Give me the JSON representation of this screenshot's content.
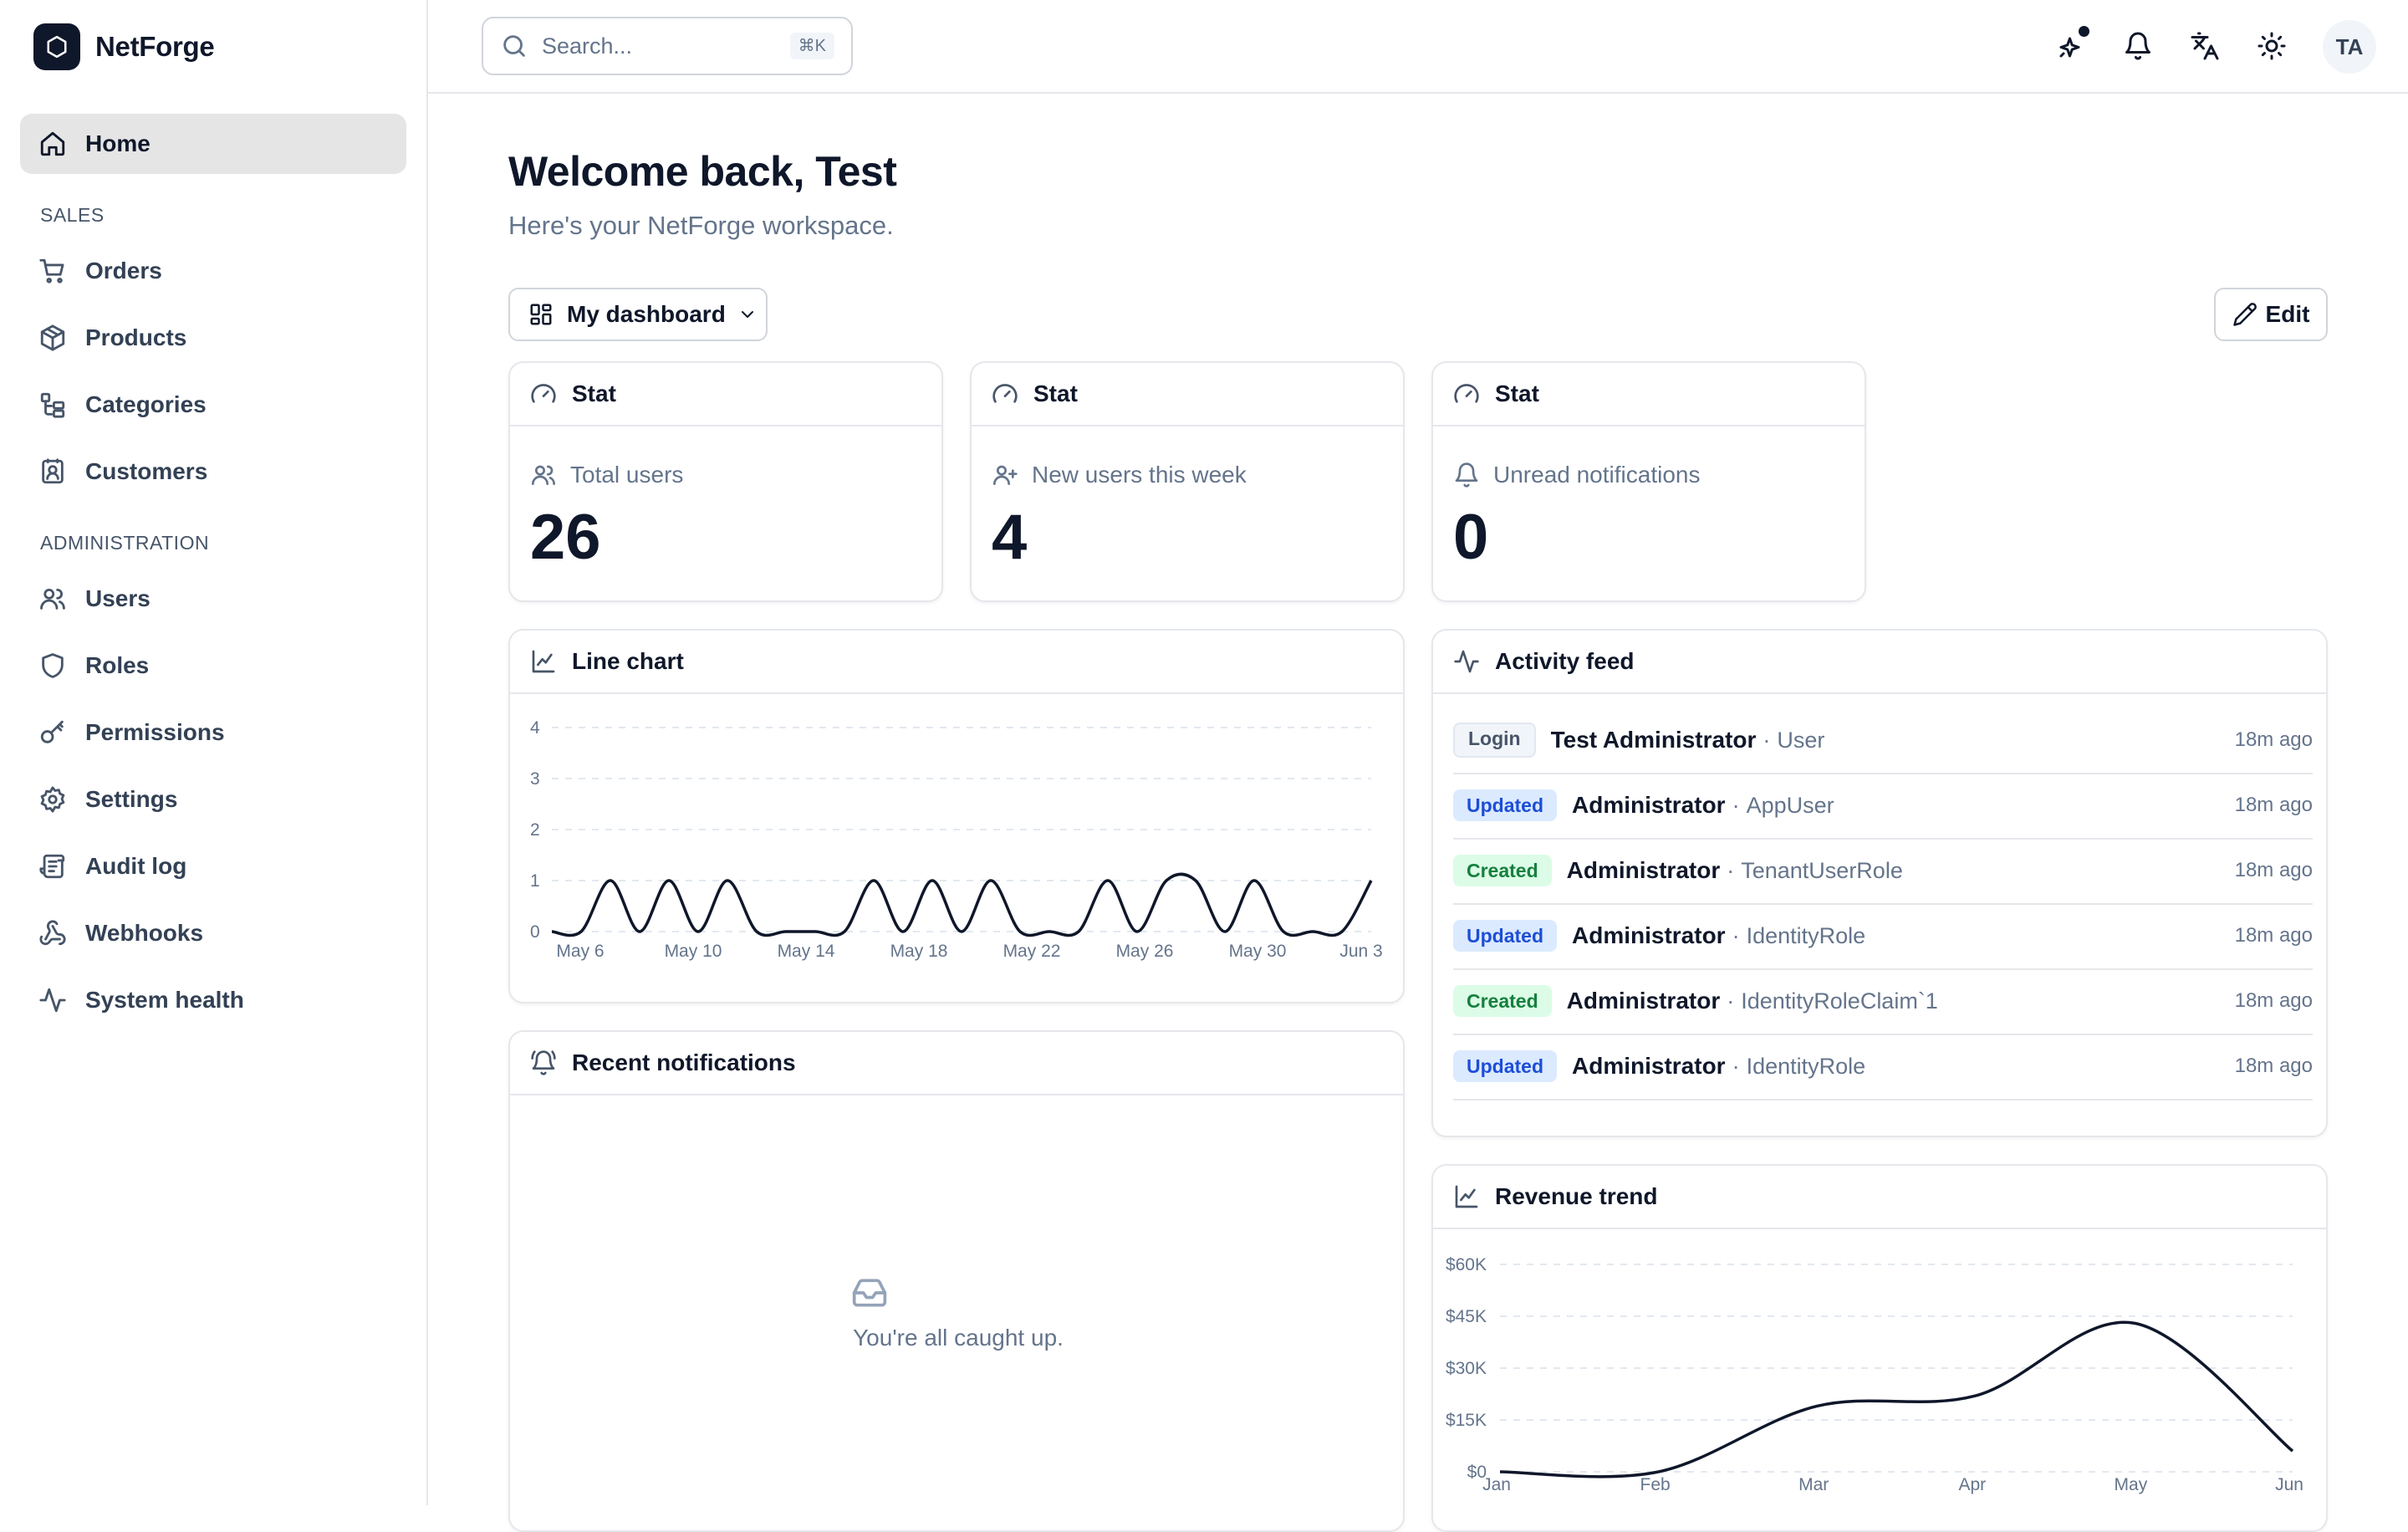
{
  "app": {
    "name": "NetForge"
  },
  "sidebar": {
    "home": {
      "label": "Home"
    },
    "sections": [
      {
        "title": "SALES",
        "items": [
          {
            "label": "Orders",
            "icon": "cart-icon"
          },
          {
            "label": "Products",
            "icon": "box-icon"
          },
          {
            "label": "Categories",
            "icon": "categories-icon"
          },
          {
            "label": "Customers",
            "icon": "contact-icon"
          }
        ]
      },
      {
        "title": "ADMINISTRATION",
        "items": [
          {
            "label": "Users",
            "icon": "users-icon"
          },
          {
            "label": "Roles",
            "icon": "shield-icon"
          },
          {
            "label": "Permissions",
            "icon": "key-icon"
          },
          {
            "label": "Settings",
            "icon": "gear-icon"
          },
          {
            "label": "Audit log",
            "icon": "scroll-icon"
          },
          {
            "label": "Webhooks",
            "icon": "webhook-icon"
          },
          {
            "label": "System health",
            "icon": "activity-icon"
          }
        ]
      }
    ]
  },
  "header": {
    "search": {
      "placeholder": "Search...",
      "shortcut": "⌘K"
    },
    "avatar_initials": "TA"
  },
  "main": {
    "title": "Welcome back, Test",
    "subtitle": "Here's your NetForge workspace.",
    "dashboard_select": {
      "label": "My dashboard"
    },
    "edit_label": "Edit",
    "stats": [
      {
        "card_title": "Stat",
        "label": "Total users",
        "value": "26"
      },
      {
        "card_title": "Stat",
        "label": "New users this week",
        "value": "4"
      },
      {
        "card_title": "Stat",
        "label": "Unread notifications",
        "value": "0"
      }
    ],
    "line_chart": {
      "title": "Line chart"
    },
    "activity_feed": {
      "title": "Activity feed",
      "items": [
        {
          "badge": "Login",
          "kind": "login",
          "actor": "Test Administrator",
          "entity": "User",
          "time": "18m ago"
        },
        {
          "badge": "Updated",
          "kind": "updated",
          "actor": "Administrator",
          "entity": "AppUser",
          "time": "18m ago"
        },
        {
          "badge": "Created",
          "kind": "created",
          "actor": "Administrator",
          "entity": "TenantUserRole",
          "time": "18m ago"
        },
        {
          "badge": "Updated",
          "kind": "updated",
          "actor": "Administrator",
          "entity": "IdentityRole",
          "time": "18m ago"
        },
        {
          "badge": "Created",
          "kind": "created",
          "actor": "Administrator",
          "entity": "IdentityRoleClaim`1",
          "time": "18m ago"
        },
        {
          "badge": "Updated",
          "kind": "updated",
          "actor": "Administrator",
          "entity": "IdentityRole",
          "time": "18m ago"
        }
      ]
    },
    "notifications": {
      "title": "Recent notifications",
      "empty_text": "You're all caught up."
    },
    "revenue": {
      "title": "Revenue trend"
    }
  },
  "chart_data": [
    {
      "type": "line",
      "x_tick_labels": [
        "May 6",
        "May 10",
        "May 14",
        "May 18",
        "May 22",
        "May 26",
        "May 30",
        "Jun 3"
      ],
      "y_tick_labels": [
        "0",
        "1",
        "2",
        "3",
        "4"
      ],
      "ylim": [
        0,
        4
      ],
      "grid": true,
      "series": [
        {
          "values": [
            0,
            0,
            1,
            0,
            1,
            0,
            1,
            0,
            0,
            0,
            0,
            1,
            0,
            1,
            0,
            1,
            0,
            0,
            0,
            1,
            0,
            1,
            1,
            0,
            1,
            0,
            0,
            0,
            1
          ]
        }
      ]
    },
    {
      "type": "line",
      "categories": [
        "Jan",
        "Feb",
        "Mar",
        "Apr",
        "May",
        "Jun"
      ],
      "y_tick_labels": [
        "$0",
        "$15K",
        "$30K",
        "$45K",
        "$60K"
      ],
      "ylim": [
        0,
        60000
      ],
      "grid": true,
      "series": [
        {
          "values": [
            0,
            0,
            19000,
            22000,
            43000,
            6000
          ]
        }
      ]
    }
  ],
  "colors": {
    "accent": "#0f172a",
    "updated_badge": "#dbeafe",
    "created_badge": "#dcfce7",
    "border": "#e5e7eb"
  }
}
